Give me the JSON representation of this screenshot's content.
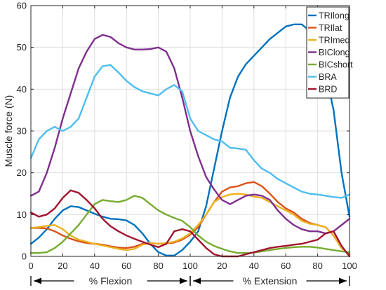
{
  "chart_data": {
    "type": "line",
    "ylabel": "Muscle force (N)",
    "ylim": [
      0,
      60
    ],
    "yticks": [
      0,
      10,
      20,
      30,
      40,
      50,
      60
    ],
    "grid": true,
    "legend_placement": "top-right",
    "phases": [
      {
        "label": "% Flexion",
        "ticks": [
          0,
          20,
          40,
          60,
          80,
          100
        ],
        "xlim": [
          0,
          100
        ]
      },
      {
        "label": "% Extension",
        "ticks": [
          0,
          20,
          40,
          60,
          80,
          100
        ],
        "xlim": [
          0,
          100
        ]
      }
    ],
    "series": [
      {
        "name": "TRIlong",
        "color": "#0072BD",
        "points": [
          [
            0,
            3
          ],
          [
            5,
            4.5
          ],
          [
            10,
            6.5
          ],
          [
            15,
            9
          ],
          [
            20,
            11
          ],
          [
            25,
            12
          ],
          [
            30,
            11.8
          ],
          [
            35,
            11
          ],
          [
            40,
            10.2
          ],
          [
            45,
            9.5
          ],
          [
            50,
            9
          ],
          [
            55,
            8.9
          ],
          [
            60,
            8.6
          ],
          [
            65,
            7.5
          ],
          [
            70,
            5.5
          ],
          [
            75,
            3
          ],
          [
            80,
            1
          ],
          [
            85,
            0.2
          ],
          [
            90,
            0.2
          ],
          [
            95,
            1.5
          ],
          [
            100,
            3.5
          ],
          [
            105,
            6
          ],
          [
            110,
            12
          ],
          [
            115,
            21
          ],
          [
            120,
            30
          ],
          [
            125,
            38
          ],
          [
            130,
            43
          ],
          [
            135,
            46
          ],
          [
            140,
            48
          ],
          [
            145,
            50
          ],
          [
            150,
            52
          ],
          [
            155,
            53.5
          ],
          [
            160,
            55
          ],
          [
            165,
            55.5
          ],
          [
            170,
            55.5
          ],
          [
            175,
            54
          ],
          [
            180,
            51
          ],
          [
            185,
            44
          ],
          [
            190,
            35
          ],
          [
            195,
            20
          ],
          [
            200,
            9.5
          ]
        ]
      },
      {
        "name": "TRIlat",
        "color": "#D95319",
        "points": [
          [
            0,
            6.8
          ],
          [
            5,
            6.8
          ],
          [
            10,
            6.7
          ],
          [
            15,
            6
          ],
          [
            20,
            5
          ],
          [
            25,
            4.2
          ],
          [
            30,
            3.6
          ],
          [
            35,
            3.2
          ],
          [
            40,
            3
          ],
          [
            45,
            2.8
          ],
          [
            50,
            2.4
          ],
          [
            55,
            2.1
          ],
          [
            60,
            2
          ],
          [
            65,
            2.3
          ],
          [
            70,
            3
          ],
          [
            75,
            3.2
          ],
          [
            80,
            3
          ],
          [
            85,
            3.1
          ],
          [
            90,
            3.3
          ],
          [
            95,
            4
          ],
          [
            100,
            5.2
          ],
          [
            105,
            7
          ],
          [
            110,
            10
          ],
          [
            115,
            13
          ],
          [
            120,
            15.5
          ],
          [
            125,
            16.5
          ],
          [
            130,
            16.8
          ],
          [
            135,
            17.5
          ],
          [
            140,
            17.8
          ],
          [
            145,
            16.8
          ],
          [
            150,
            15
          ],
          [
            155,
            13
          ],
          [
            160,
            11.5
          ],
          [
            165,
            10.5
          ],
          [
            170,
            9
          ],
          [
            175,
            8
          ],
          [
            180,
            7.5
          ],
          [
            185,
            7
          ],
          [
            190,
            5
          ],
          [
            195,
            2
          ],
          [
            200,
            0.5
          ]
        ]
      },
      {
        "name": "TRImed",
        "color": "#EDB120",
        "points": [
          [
            0,
            6.8
          ],
          [
            5,
            7
          ],
          [
            10,
            7.3
          ],
          [
            15,
            7.5
          ],
          [
            20,
            6.5
          ],
          [
            25,
            5
          ],
          [
            30,
            4
          ],
          [
            35,
            3.5
          ],
          [
            40,
            3
          ],
          [
            45,
            2.6
          ],
          [
            50,
            2.2
          ],
          [
            55,
            1.8
          ],
          [
            60,
            1.5
          ],
          [
            65,
            1.8
          ],
          [
            70,
            2.8
          ],
          [
            75,
            3.2
          ],
          [
            80,
            3
          ],
          [
            85,
            3.2
          ],
          [
            90,
            3.5
          ],
          [
            95,
            4.3
          ],
          [
            100,
            5.5
          ],
          [
            105,
            7.5
          ],
          [
            110,
            10
          ],
          [
            115,
            13
          ],
          [
            120,
            14.2
          ],
          [
            125,
            14.8
          ],
          [
            130,
            15
          ],
          [
            135,
            14.8
          ],
          [
            140,
            14.3
          ],
          [
            145,
            14
          ],
          [
            150,
            13
          ],
          [
            155,
            12
          ],
          [
            160,
            11
          ],
          [
            165,
            10
          ],
          [
            170,
            8.5
          ],
          [
            175,
            7.8
          ],
          [
            180,
            7.5
          ],
          [
            185,
            7
          ],
          [
            190,
            5
          ],
          [
            195,
            2
          ],
          [
            200,
            0.2
          ]
        ]
      },
      {
        "name": "BIClong",
        "color": "#7E2F8E",
        "points": [
          [
            0,
            14.5
          ],
          [
            5,
            15.5
          ],
          [
            10,
            20
          ],
          [
            15,
            26
          ],
          [
            20,
            33
          ],
          [
            25,
            39
          ],
          [
            30,
            45
          ],
          [
            35,
            49
          ],
          [
            40,
            52
          ],
          [
            45,
            53
          ],
          [
            50,
            52.5
          ],
          [
            55,
            51
          ],
          [
            60,
            50
          ],
          [
            65,
            49.5
          ],
          [
            70,
            49.5
          ],
          [
            75,
            49.6
          ],
          [
            80,
            50
          ],
          [
            85,
            49
          ],
          [
            90,
            45
          ],
          [
            95,
            38
          ],
          [
            100,
            30
          ],
          [
            105,
            24
          ],
          [
            110,
            19
          ],
          [
            115,
            16
          ],
          [
            120,
            13.5
          ],
          [
            125,
            12.5
          ],
          [
            130,
            13.5
          ],
          [
            135,
            14.5
          ],
          [
            140,
            14.8
          ],
          [
            145,
            14.5
          ],
          [
            150,
            13.5
          ],
          [
            155,
            11
          ],
          [
            160,
            9
          ],
          [
            165,
            7.5
          ],
          [
            170,
            6.5
          ],
          [
            175,
            6
          ],
          [
            180,
            6
          ],
          [
            185,
            5.5
          ],
          [
            190,
            6
          ],
          [
            195,
            7.5
          ],
          [
            200,
            9
          ]
        ]
      },
      {
        "name": "BICshort",
        "color": "#77AC30",
        "points": [
          [
            0,
            0.8
          ],
          [
            5,
            0.8
          ],
          [
            10,
            1
          ],
          [
            15,
            2
          ],
          [
            20,
            3.5
          ],
          [
            25,
            5.5
          ],
          [
            30,
            7.5
          ],
          [
            35,
            10
          ],
          [
            40,
            12.5
          ],
          [
            45,
            13.5
          ],
          [
            50,
            13.2
          ],
          [
            55,
            13
          ],
          [
            60,
            13.5
          ],
          [
            65,
            14.5
          ],
          [
            70,
            14
          ],
          [
            75,
            12.5
          ],
          [
            80,
            11
          ],
          [
            85,
            10
          ],
          [
            90,
            9.2
          ],
          [
            95,
            8.5
          ],
          [
            100,
            7
          ],
          [
            105,
            5
          ],
          [
            110,
            3.5
          ],
          [
            115,
            2.5
          ],
          [
            120,
            1.8
          ],
          [
            125,
            1.2
          ],
          [
            130,
            0.8
          ],
          [
            135,
            0.8
          ],
          [
            140,
            0.9
          ],
          [
            145,
            1.2
          ],
          [
            150,
            1.5
          ],
          [
            155,
            1.8
          ],
          [
            160,
            2
          ],
          [
            165,
            2.2
          ],
          [
            170,
            2.3
          ],
          [
            175,
            2.3
          ],
          [
            180,
            2.1
          ],
          [
            185,
            1.8
          ],
          [
            190,
            1.5
          ],
          [
            195,
            1.2
          ],
          [
            200,
            1
          ]
        ]
      },
      {
        "name": "BRA",
        "color": "#4DBEEE",
        "points": [
          [
            0,
            23.5
          ],
          [
            5,
            28
          ],
          [
            10,
            30
          ],
          [
            15,
            31
          ],
          [
            20,
            30
          ],
          [
            25,
            31
          ],
          [
            30,
            33
          ],
          [
            35,
            38
          ],
          [
            40,
            43
          ],
          [
            45,
            45.5
          ],
          [
            50,
            45.8
          ],
          [
            55,
            44
          ],
          [
            60,
            42
          ],
          [
            65,
            40.5
          ],
          [
            70,
            39.5
          ],
          [
            75,
            39
          ],
          [
            80,
            38.5
          ],
          [
            85,
            40
          ],
          [
            90,
            41
          ],
          [
            95,
            39.5
          ],
          [
            100,
            33
          ],
          [
            105,
            30
          ],
          [
            110,
            29
          ],
          [
            115,
            28
          ],
          [
            120,
            27.5
          ],
          [
            125,
            26
          ],
          [
            130,
            25.8
          ],
          [
            135,
            25.5
          ],
          [
            140,
            23
          ],
          [
            145,
            21
          ],
          [
            150,
            20
          ],
          [
            155,
            18.5
          ],
          [
            160,
            17.5
          ],
          [
            165,
            16.5
          ],
          [
            170,
            15.5
          ],
          [
            175,
            15
          ],
          [
            180,
            14.8
          ],
          [
            185,
            14.5
          ],
          [
            190,
            14.2
          ],
          [
            195,
            14
          ],
          [
            200,
            14.8
          ]
        ]
      },
      {
        "name": "BRD",
        "color": "#A2142F",
        "points": [
          [
            0,
            10.5
          ],
          [
            5,
            9.5
          ],
          [
            10,
            10
          ],
          [
            15,
            11.5
          ],
          [
            20,
            14
          ],
          [
            25,
            15.8
          ],
          [
            30,
            15.2
          ],
          [
            35,
            13.5
          ],
          [
            40,
            11.5
          ],
          [
            45,
            9
          ],
          [
            50,
            7.2
          ],
          [
            55,
            6
          ],
          [
            60,
            5
          ],
          [
            65,
            4.2
          ],
          [
            70,
            3.5
          ],
          [
            75,
            2.8
          ],
          [
            80,
            2.2
          ],
          [
            85,
            3
          ],
          [
            90,
            6
          ],
          [
            95,
            6.5
          ],
          [
            100,
            6
          ],
          [
            105,
            4
          ],
          [
            110,
            2
          ],
          [
            115,
            0.5
          ],
          [
            120,
            0
          ],
          [
            125,
            0
          ],
          [
            130,
            0
          ],
          [
            135,
            0.5
          ],
          [
            140,
            1
          ],
          [
            145,
            1.5
          ],
          [
            150,
            2
          ],
          [
            155,
            2.3
          ],
          [
            160,
            2.5
          ],
          [
            165,
            2.8
          ],
          [
            170,
            3
          ],
          [
            175,
            3.5
          ],
          [
            180,
            4
          ],
          [
            185,
            5.5
          ],
          [
            190,
            6
          ],
          [
            195,
            2.5
          ],
          [
            200,
            0
          ]
        ]
      }
    ]
  }
}
